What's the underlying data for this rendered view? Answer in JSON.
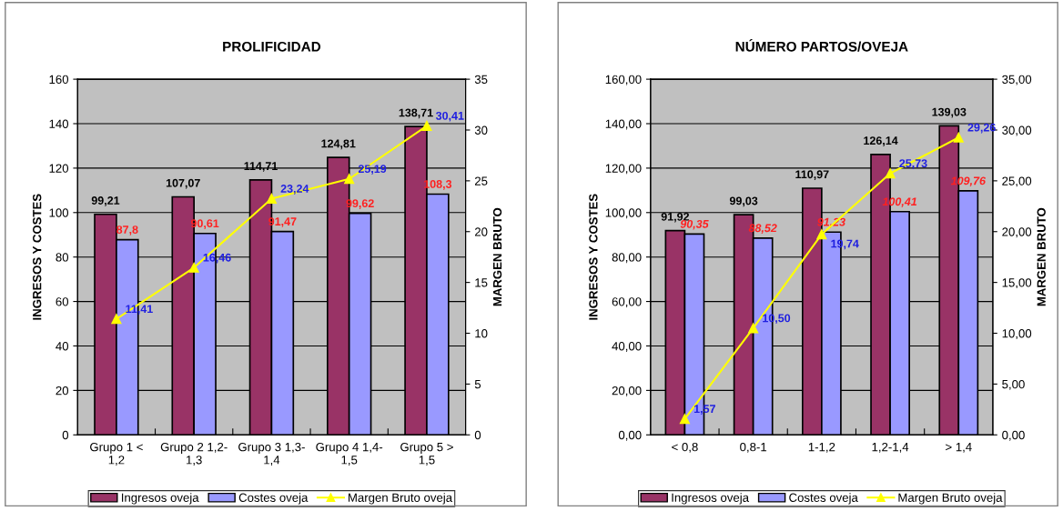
{
  "chart_data": [
    {
      "type": "bar",
      "title": "PROLIFICIDAD",
      "ylabel": "INGRESOS Y COSTES",
      "y2label": "MARGEN BRUTO",
      "categories": [
        "Grupo 1 <\n1,2",
        "Grupo 2 1,2-\n1,3",
        "Grupo 3 1,3-\n1,4",
        "Grupo 4 1,4-\n1,5",
        "Grupo 5 >\n1,5"
      ],
      "series": [
        {
          "name": "Ingresos oveja",
          "color": "#993366",
          "values": [
            99.21,
            107.07,
            114.71,
            124.81,
            138.71
          ],
          "value_labels": [
            "99,21",
            "107,07",
            "114,71",
            "124,81",
            "138,71"
          ]
        },
        {
          "name": "Costes oveja",
          "color": "#9999ff",
          "values": [
            87.8,
            90.61,
            91.47,
            99.62,
            108.3
          ],
          "value_labels": [
            "87,8",
            "90,61",
            "91,47",
            "99,62",
            "108,3"
          ]
        },
        {
          "name": "Margen Bruto oveja",
          "type": "line",
          "axis": "y2",
          "color": "#ffff00",
          "marker": "triangle",
          "values": [
            11.41,
            16.46,
            23.24,
            25.19,
            30.41
          ],
          "value_labels": [
            "11,41",
            "16,46",
            "23,24",
            "25,19",
            "30,41"
          ]
        }
      ],
      "ylim": [
        0,
        160
      ],
      "yticks": [
        0,
        20,
        40,
        60,
        80,
        100,
        120,
        140,
        160
      ],
      "y2lim": [
        0,
        35
      ],
      "y2ticks": [
        0,
        5,
        10,
        15,
        20,
        25,
        30,
        35
      ],
      "grid": "y",
      "legend": "bottom"
    },
    {
      "type": "bar",
      "title": "NÚMERO PARTOS/OVEJA",
      "ylabel": "INGRESOS Y COSTES",
      "y2label": "MARGEN BRUTO",
      "categories": [
        "< 0,8",
        "0,8-1",
        "1-1,2",
        "1,2-1,4",
        "> 1,4"
      ],
      "series": [
        {
          "name": "Ingresos oveja",
          "color": "#993366",
          "values": [
            91.92,
            99.03,
            110.97,
            126.14,
            139.03
          ],
          "value_labels": [
            "91,92",
            "99,03",
            "110,97",
            "126,14",
            "139,03"
          ]
        },
        {
          "name": "Costes oveja",
          "color": "#9999ff",
          "values": [
            90.35,
            88.52,
            91.23,
            100.41,
            109.76
          ],
          "value_labels": [
            "90,35",
            "88,52",
            "91,23",
            "100,41",
            "109,76"
          ]
        },
        {
          "name": "Margen Bruto oveja",
          "type": "line",
          "axis": "y2",
          "color": "#ffff00",
          "marker": "triangle",
          "values": [
            1.57,
            10.5,
            19.74,
            25.73,
            29.26
          ],
          "value_labels": [
            "1,57",
            "10,50",
            "19,74",
            "25,73",
            "29,26"
          ]
        }
      ],
      "ylim": [
        0,
        160
      ],
      "yticks": [
        {
          "value": 0,
          "label": "0,00"
        },
        {
          "value": 20,
          "label": "20,00"
        },
        {
          "value": 40,
          "label": "40,00"
        },
        {
          "value": 60,
          "label": "60,00"
        },
        {
          "value": 80,
          "label": "80,00"
        },
        {
          "value": 100,
          "label": "100,00"
        },
        {
          "value": 120,
          "label": "120,00"
        },
        {
          "value": 140,
          "label": "140,00"
        },
        {
          "value": 160,
          "label": "160,00"
        }
      ],
      "y2lim": [
        0,
        35
      ],
      "y2ticks": [
        {
          "value": 0,
          "label": "0,00"
        },
        {
          "value": 5,
          "label": "5,00"
        },
        {
          "value": 10,
          "label": "10,00"
        },
        {
          "value": 15,
          "label": "15,00"
        },
        {
          "value": 20,
          "label": "20,00"
        },
        {
          "value": 25,
          "label": "25,00"
        },
        {
          "value": 30,
          "label": "30,00"
        },
        {
          "value": 35,
          "label": "35,00"
        }
      ],
      "grid": "y",
      "legend": "bottom"
    }
  ]
}
